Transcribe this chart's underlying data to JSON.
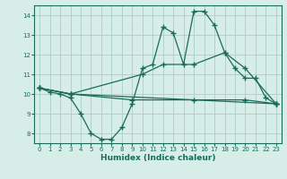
{
  "xlabel": "Humidex (Indice chaleur)",
  "background_color": "#d6ede8",
  "grid_color": "#aacfc8",
  "line_color": "#1a6b5a",
  "xlim": [
    -0.5,
    23.5
  ],
  "ylim": [
    7.5,
    14.5
  ],
  "yticks": [
    8,
    9,
    10,
    11,
    12,
    13,
    14
  ],
  "xticks": [
    0,
    1,
    2,
    3,
    4,
    5,
    6,
    7,
    8,
    9,
    10,
    11,
    12,
    13,
    14,
    15,
    16,
    17,
    18,
    19,
    20,
    21,
    22,
    23
  ],
  "line1_x": [
    0,
    1,
    2,
    3,
    4,
    5,
    6,
    7,
    8,
    9,
    10,
    11,
    12,
    13,
    14,
    15,
    16,
    17,
    18,
    19,
    20,
    21,
    22,
    23
  ],
  "line1_y": [
    10.3,
    10.1,
    10.0,
    9.8,
    9.0,
    8.0,
    7.7,
    7.7,
    8.3,
    9.5,
    11.3,
    11.5,
    13.4,
    13.1,
    11.5,
    14.2,
    14.2,
    13.5,
    12.1,
    11.3,
    10.8,
    10.8,
    9.8,
    9.5
  ],
  "line2_x": [
    0,
    3,
    23
  ],
  "line2_y": [
    10.3,
    10.0,
    9.5
  ],
  "line3_x": [
    0,
    3,
    10,
    12,
    15,
    18,
    20,
    23
  ],
  "line3_y": [
    10.3,
    10.0,
    11.0,
    11.5,
    11.5,
    12.1,
    11.3,
    9.5
  ],
  "line4_x": [
    0,
    3,
    9,
    15,
    20,
    23
  ],
  "line4_y": [
    10.3,
    10.0,
    9.7,
    9.7,
    9.7,
    9.5
  ]
}
